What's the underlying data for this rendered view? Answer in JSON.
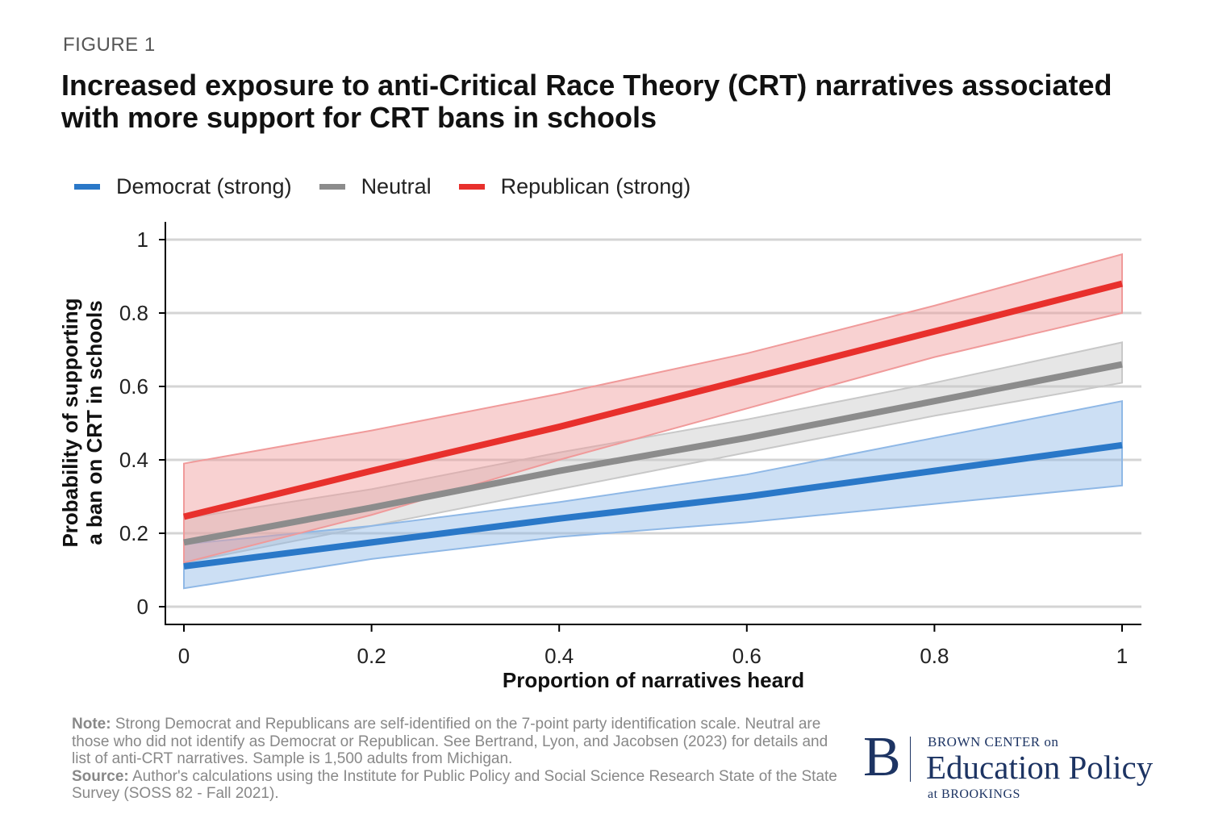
{
  "figure_label": "FIGURE 1",
  "title": "Increased exposure to anti-Critical Race Theory (CRT) narratives associated with more support for CRT bans in schools",
  "chart_data": {
    "type": "line",
    "xlabel": "Proportion of narratives heard",
    "ylabel_lines": [
      "Probability of supporting",
      "a ban on CRT in schools"
    ],
    "xlim": [
      0,
      1
    ],
    "ylim": [
      0,
      1
    ],
    "x_ticks": [
      "0",
      "0.2",
      "0.4",
      "0.6",
      "0.8",
      "1"
    ],
    "y_ticks": [
      "0",
      "0.2",
      "0.4",
      "0.6",
      "0.8",
      "1"
    ],
    "grid": "horizontal",
    "legend_position": "top-left",
    "x": [
      0,
      0.2,
      0.4,
      0.6,
      0.8,
      1
    ],
    "series": [
      {
        "name": "Neutral",
        "color": "#8c8c8c",
        "band_color": "#c8c8c8",
        "values": [
          0.175,
          0.27,
          0.37,
          0.46,
          0.56,
          0.66
        ],
        "lower": [
          0.12,
          0.22,
          0.32,
          0.42,
          0.52,
          0.61
        ],
        "upper": [
          0.24,
          0.32,
          0.42,
          0.51,
          0.61,
          0.72
        ]
      },
      {
        "name": "Democrat (strong)",
        "color": "#2a78c8",
        "band_color": "#8fb8e6",
        "values": [
          0.11,
          0.175,
          0.24,
          0.3,
          0.37,
          0.44
        ],
        "lower": [
          0.05,
          0.13,
          0.19,
          0.23,
          0.28,
          0.33
        ],
        "upper": [
          0.17,
          0.22,
          0.285,
          0.36,
          0.46,
          0.56
        ]
      },
      {
        "name": "Republican (strong)",
        "color": "#e8302c",
        "band_color": "#f09a9a",
        "values": [
          0.245,
          0.37,
          0.49,
          0.62,
          0.75,
          0.88
        ],
        "lower": [
          0.12,
          0.25,
          0.4,
          0.54,
          0.68,
          0.8
        ],
        "upper": [
          0.39,
          0.48,
          0.58,
          0.69,
          0.82,
          0.96
        ]
      }
    ],
    "legend_order": [
      "Democrat (strong)",
      "Neutral",
      "Republican (strong)"
    ]
  },
  "note": {
    "note_label": "Note:",
    "note_text": " Strong Democrat and Republicans are self-identified on the 7-point party identification scale. Neutral are those who did not identify as Democrat or Republican. See Bertrand, Lyon, and Jacobsen (2023) for details and list of anti-CRT narratives. Sample is 1,500 adults from Michigan.",
    "source_label": "Source:",
    "source_text": " Author's calculations using the Institute for Public Policy and Social Science Research State of the State Survey (SOSS 82 - Fall 2021)."
  },
  "logo": {
    "letter": "B",
    "line1": "BROWN CENTER on",
    "line2": "Education Policy",
    "line3": "at BROOKINGS"
  }
}
